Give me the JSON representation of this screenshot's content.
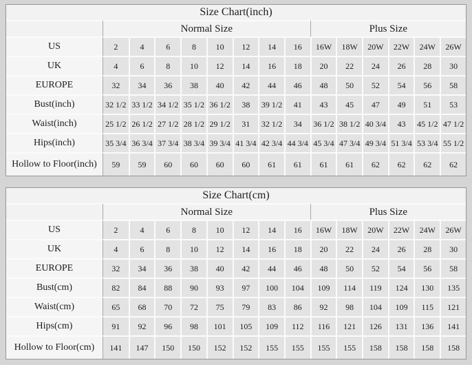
{
  "page_title": "Size Chart",
  "colors": {
    "page-bg": "#d5d5d5",
    "table-bg": "#e3e3e3",
    "label-bg": "#f5f5f5",
    "header-bg": "#f2f2f2",
    "separator": "#fbfbfb",
    "divider": "#a8a8a8",
    "outer-border": "#979797",
    "text": "#1c1c1c"
  },
  "chart_data": [
    {
      "type": "table",
      "title": "Size Chart(inch)",
      "column_groups": [
        {
          "label": "Normal Size",
          "span": 8
        },
        {
          "label": "Plus Size",
          "span": 6
        }
      ],
      "rows": [
        {
          "label": "US",
          "values": [
            "2",
            "4",
            "6",
            "8",
            "10",
            "12",
            "14",
            "16",
            "16W",
            "18W",
            "20W",
            "22W",
            "24W",
            "26W"
          ]
        },
        {
          "label": "UK",
          "values": [
            "4",
            "6",
            "8",
            "10",
            "12",
            "14",
            "16",
            "18",
            "20",
            "22",
            "24",
            "26",
            "28",
            "30"
          ]
        },
        {
          "label": "EUROPE",
          "values": [
            "32",
            "34",
            "36",
            "38",
            "40",
            "42",
            "44",
            "46",
            "48",
            "50",
            "52",
            "54",
            "56",
            "58"
          ]
        },
        {
          "label": "Bust(inch)",
          "values": [
            "32 1/2",
            "33 1/2",
            "34 1/2",
            "35 1/2",
            "36 1/2",
            "38",
            "39 1/2",
            "41",
            "43",
            "45",
            "47",
            "49",
            "51",
            "53"
          ]
        },
        {
          "label": "Waist(inch)",
          "values": [
            "25 1/2",
            "26 1/2",
            "27 1/2",
            "28 1/2",
            "29 1/2",
            "31",
            "32 1/2",
            "34",
            "36 1/2",
            "38 1/2",
            "40 3/4",
            "43",
            "45 1/2",
            "47 1/2"
          ]
        },
        {
          "label": "Hips(inch)",
          "values": [
            "35 3/4",
            "36 3/4",
            "37 3/4",
            "38 3/4",
            "39 3/4",
            "41 3/4",
            "42 3/4",
            "44 3/4",
            "45 3/4",
            "47 3/4",
            "49 3/4",
            "51 3/4",
            "53 3/4",
            "55 1/2"
          ]
        },
        {
          "label": "Hollow to Floor(inch)",
          "values": [
            "59",
            "59",
            "60",
            "60",
            "60",
            "60",
            "61",
            "61",
            "61",
            "61",
            "62",
            "62",
            "62",
            "62"
          ]
        }
      ]
    },
    {
      "type": "table",
      "title": "Size Chart(cm)",
      "column_groups": [
        {
          "label": "Normal Size",
          "span": 8
        },
        {
          "label": "Plus Size",
          "span": 6
        }
      ],
      "rows": [
        {
          "label": "US",
          "values": [
            "2",
            "4",
            "6",
            "8",
            "10",
            "12",
            "14",
            "16",
            "16W",
            "18W",
            "20W",
            "22W",
            "24W",
            "26W"
          ]
        },
        {
          "label": "UK",
          "values": [
            "4",
            "6",
            "8",
            "10",
            "12",
            "14",
            "16",
            "18",
            "20",
            "22",
            "24",
            "26",
            "28",
            "30"
          ]
        },
        {
          "label": "EUROPE",
          "values": [
            "32",
            "34",
            "36",
            "38",
            "40",
            "42",
            "44",
            "46",
            "48",
            "50",
            "52",
            "54",
            "56",
            "58"
          ]
        },
        {
          "label": "Bust(cm)",
          "values": [
            "82",
            "84",
            "88",
            "90",
            "93",
            "97",
            "100",
            "104",
            "109",
            "114",
            "119",
            "124",
            "130",
            "135"
          ]
        },
        {
          "label": "Waist(cm)",
          "values": [
            "65",
            "68",
            "70",
            "72",
            "75",
            "79",
            "83",
            "86",
            "92",
            "98",
            "104",
            "109",
            "115",
            "121"
          ]
        },
        {
          "label": "Hips(cm)",
          "values": [
            "91",
            "92",
            "96",
            "98",
            "101",
            "105",
            "109",
            "112",
            "116",
            "121",
            "126",
            "131",
            "136",
            "141"
          ]
        },
        {
          "label": "Hollow to Floor(cm)",
          "values": [
            "141",
            "147",
            "150",
            "150",
            "152",
            "152",
            "155",
            "155",
            "155",
            "155",
            "158",
            "158",
            "158",
            "158"
          ]
        }
      ]
    }
  ]
}
